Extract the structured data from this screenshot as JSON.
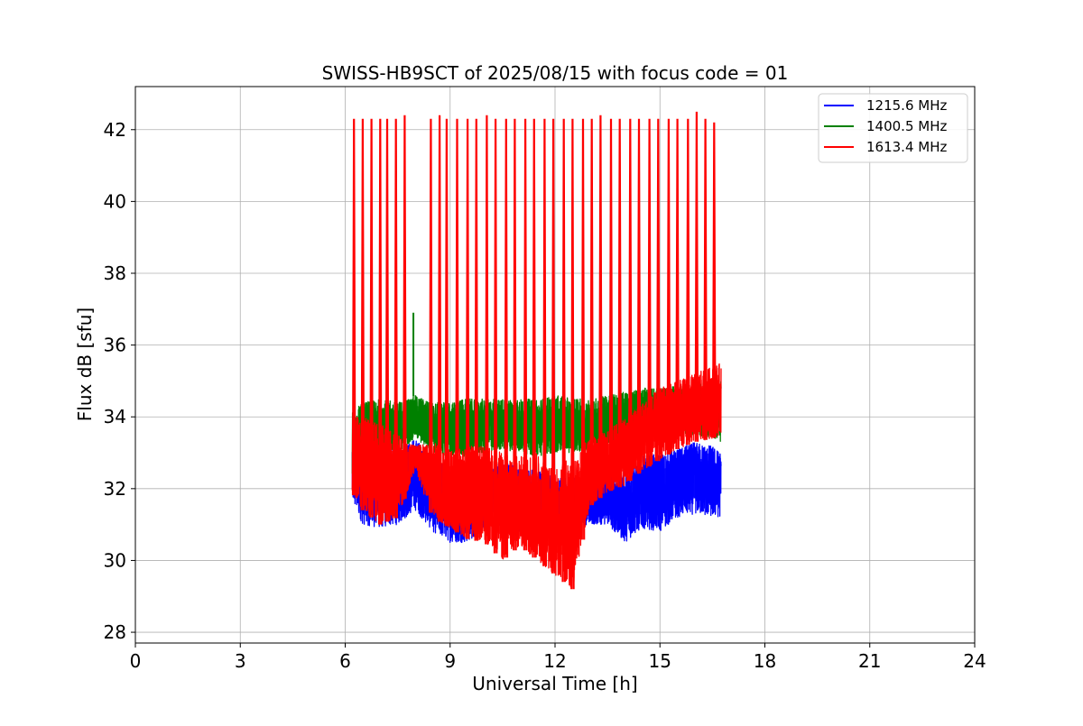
{
  "chart_data": {
    "type": "line",
    "title": "SWISS-HB9SCT of 2025/08/15 with focus code = 01",
    "xlabel": "Universal Time [h]",
    "ylabel": "Flux dB [sfu]",
    "xlim": [
      0,
      24
    ],
    "ylim": [
      27.7,
      43.2
    ],
    "xticks": [
      0,
      3,
      6,
      9,
      12,
      15,
      18,
      21,
      24
    ],
    "yticks": [
      28,
      30,
      32,
      34,
      36,
      38,
      40,
      42
    ],
    "grid": true,
    "legend_position": "top-right",
    "observation_window": [
      6.2,
      16.75
    ],
    "series": [
      {
        "name": "1215.6 MHz",
        "color": "#0000ff",
        "envelope_x": [
          6.2,
          6.5,
          7.0,
          7.5,
          8.0,
          8.5,
          9.0,
          9.5,
          10.0,
          10.5,
          11.0,
          11.5,
          12.0,
          12.5,
          13.0,
          13.5,
          14.0,
          14.5,
          15.0,
          15.5,
          16.0,
          16.5,
          16.75
        ],
        "envelope_low": [
          31.6,
          31.0,
          30.9,
          31.0,
          31.4,
          30.8,
          30.5,
          30.5,
          30.9,
          31.0,
          30.8,
          31.0,
          30.6,
          30.9,
          31.0,
          31.0,
          30.5,
          30.9,
          30.8,
          31.2,
          31.3,
          31.2,
          31.2
        ],
        "envelope_high": [
          33.5,
          33.3,
          33.2,
          33.1,
          33.4,
          33.0,
          32.6,
          32.5,
          32.7,
          32.8,
          32.6,
          32.5,
          32.3,
          32.3,
          32.3,
          32.4,
          32.5,
          32.9,
          33.0,
          33.1,
          33.3,
          33.2,
          33.0
        ]
      },
      {
        "name": "1400.5 MHz",
        "color": "#008000",
        "envelope_x": [
          6.2,
          6.5,
          7.0,
          7.5,
          8.0,
          8.5,
          9.0,
          9.5,
          10.0,
          10.5,
          11.0,
          11.5,
          12.0,
          12.5,
          13.0,
          13.5,
          14.0,
          14.5,
          15.0,
          15.5,
          16.0,
          16.5,
          16.75
        ],
        "envelope_low": [
          32.4,
          32.8,
          33.1,
          33.0,
          33.4,
          33.0,
          32.9,
          32.9,
          33.0,
          33.1,
          33.0,
          32.9,
          33.0,
          33.0,
          33.1,
          33.2,
          33.3,
          33.4,
          33.5,
          33.5,
          33.5,
          33.4,
          33.3
        ],
        "envelope_high": [
          34.2,
          34.4,
          34.5,
          34.4,
          34.6,
          34.4,
          34.4,
          34.5,
          34.5,
          34.5,
          34.5,
          34.5,
          34.6,
          34.5,
          34.5,
          34.6,
          34.7,
          34.8,
          34.8,
          34.9,
          34.9,
          35.0,
          35.0
        ],
        "spikes": [
          {
            "x": 7.95,
            "y": 36.9
          }
        ]
      },
      {
        "name": "1613.4 MHz",
        "color": "#ff0000",
        "envelope_x": [
          6.2,
          6.5,
          7.0,
          7.5,
          8.0,
          8.5,
          9.0,
          9.5,
          10.0,
          10.5,
          11.0,
          11.5,
          12.0,
          12.5,
          13.0,
          13.5,
          14.0,
          14.5,
          15.0,
          15.5,
          16.0,
          16.5,
          16.75
        ],
        "envelope_low": [
          31.9,
          31.4,
          31.0,
          31.2,
          32.5,
          31.2,
          30.9,
          30.6,
          30.5,
          30.0,
          30.4,
          30.0,
          29.6,
          29.2,
          31.5,
          31.9,
          32.1,
          32.5,
          32.8,
          33.1,
          33.3,
          33.4,
          33.5
        ],
        "envelope_high": [
          34.0,
          34.0,
          33.8,
          33.5,
          33.2,
          33.3,
          33.1,
          33.2,
          33.2,
          33.0,
          32.9,
          33.0,
          32.5,
          33.0,
          33.4,
          33.6,
          34.0,
          34.4,
          34.8,
          35.0,
          35.2,
          35.4,
          35.5
        ],
        "spikes_x": [
          6.25,
          6.5,
          6.75,
          7.0,
          7.2,
          7.45,
          7.7,
          8.45,
          8.7,
          8.9,
          9.2,
          9.5,
          9.75,
          10.05,
          10.3,
          10.6,
          10.85,
          11.15,
          11.4,
          11.7,
          11.95,
          12.25,
          12.5,
          12.8,
          13.05,
          13.3,
          13.6,
          13.85,
          14.15,
          14.4,
          14.7,
          14.95,
          15.25,
          15.5,
          15.8,
          16.05,
          16.3,
          16.55
        ],
        "spikes_y": [
          42.3,
          42.3,
          42.3,
          42.3,
          42.3,
          42.3,
          42.4,
          42.3,
          42.4,
          42.3,
          42.3,
          42.3,
          42.3,
          42.4,
          42.3,
          42.3,
          42.3,
          42.3,
          42.3,
          42.3,
          42.3,
          42.3,
          42.3,
          42.3,
          42.3,
          42.4,
          42.3,
          42.3,
          42.3,
          42.3,
          42.3,
          42.3,
          42.3,
          42.3,
          42.3,
          42.5,
          42.3,
          42.2
        ]
      }
    ]
  }
}
